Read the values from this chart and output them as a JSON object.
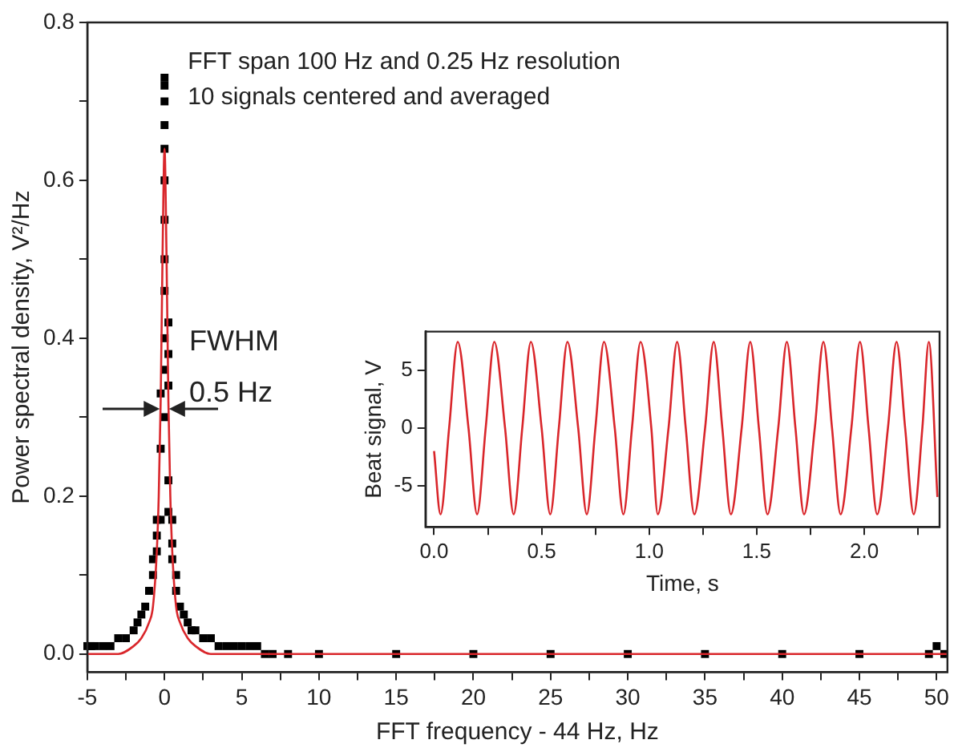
{
  "chart_data": [
    {
      "type": "scatter",
      "xlabel": "FFT frequency - 44 Hz, Hz",
      "ylabel": "Power spectral density, V²/Hz",
      "annotations": [
        "FFT span 100 Hz and 0.25 Hz resolution",
        "10 signals centered and averaged",
        "FWHM",
        "0.5 Hz"
      ],
      "xlim": [
        -5,
        50.7
      ],
      "ylim": [
        -0.023,
        0.8
      ],
      "xticks": [
        -5,
        {
          "value": -2.5,
          "label": null
        },
        0,
        {
          "value": 2.5,
          "label": null
        },
        5,
        {
          "value": 7.5,
          "label": null
        },
        10,
        {
          "value": 12.5,
          "label": null
        },
        15,
        {
          "value": 17.5,
          "label": null
        },
        20,
        {
          "value": 22.5,
          "label": null
        },
        25,
        {
          "value": 27.5,
          "label": null
        },
        30,
        {
          "value": 32.5,
          "label": null
        },
        35,
        {
          "value": 37.5,
          "label": null
        },
        40,
        {
          "value": 42.5,
          "label": null
        },
        45,
        {
          "value": 47.5,
          "label": null
        },
        50
      ],
      "yticks": [
        {
          "value": 0,
          "label": "0.0"
        },
        {
          "value": 0.1,
          "label": null
        },
        0.2,
        {
          "value": 0.3,
          "label": null
        },
        0.4,
        {
          "value": 0.5,
          "label": null
        },
        0.6,
        {
          "value": 0.7,
          "label": null
        },
        0.8
      ],
      "grid": false,
      "series": [
        {
          "type": "scatter",
          "color": "#000000",
          "marker": "square",
          "x": [
            -5,
            -4.75,
            -4.5,
            -4,
            -3.5,
            -3,
            -2.5,
            -2,
            -1.75,
            -1.5,
            -1.25,
            -1,
            -0.75,
            -0.75,
            -0.5,
            -0.5,
            -0.5,
            -0.25,
            -0.25,
            -0.25,
            0,
            0,
            0,
            0,
            0,
            0,
            0,
            0,
            0,
            0,
            0,
            0,
            0.25,
            0.25,
            0.25,
            0.25,
            0.25,
            0.5,
            0.5,
            0.5,
            0.75,
            0.75,
            1,
            1.25,
            1.5,
            1.75,
            2,
            2.5,
            3,
            3.5,
            4,
            4.5,
            5,
            5.5,
            6,
            6.5,
            7,
            8,
            10,
            15,
            20,
            25,
            30,
            35,
            40,
            45,
            49.5,
            50,
            50.5
          ],
          "values": [
            0.01,
            0.01,
            0.01,
            0.01,
            0.01,
            0.02,
            0.02,
            0.03,
            0.04,
            0.05,
            0.06,
            0.08,
            0.1,
            0.12,
            0.13,
            0.15,
            0.17,
            0.17,
            0.26,
            0.33,
            0.73,
            0.72,
            0.7,
            0.67,
            0.64,
            0.6,
            0.55,
            0.5,
            0.46,
            0.4,
            0.36,
            0.3,
            0.42,
            0.38,
            0.34,
            0.22,
            0.18,
            0.17,
            0.14,
            0.12,
            0.1,
            0.08,
            0.06,
            0.05,
            0.04,
            0.03,
            0.03,
            0.02,
            0.02,
            0.01,
            0.01,
            0.01,
            0.01,
            0.01,
            0.01,
            0,
            0,
            0,
            0,
            0,
            0,
            0,
            0,
            0,
            0,
            0,
            0,
            0.01,
            0
          ]
        },
        {
          "type": "line",
          "color": "#d9262b",
          "marker": "none",
          "x": [
            -5,
            -4,
            -3,
            -2,
            -1.5,
            -1,
            -0.75,
            -0.5,
            -0.375,
            -0.25,
            -0.125,
            0,
            0.125,
            0.25,
            0.375,
            0.5,
            0.75,
            1,
            1.5,
            2,
            3,
            4,
            5,
            10,
            20,
            30,
            40,
            50.7
          ],
          "values": [
            0,
            0,
            0,
            0.01,
            0.02,
            0.04,
            0.06,
            0.13,
            0.2,
            0.32,
            0.51,
            0.64,
            0.51,
            0.32,
            0.2,
            0.13,
            0.06,
            0.04,
            0.02,
            0.01,
            0,
            0,
            0,
            0,
            0,
            0,
            0,
            0
          ]
        }
      ]
    },
    {
      "type": "line",
      "xlabel": "Time, s",
      "ylabel": "Beat signal, V",
      "xlim": [
        -0.04,
        2.35
      ],
      "ylim": [
        -8.6,
        8.4
      ],
      "xticks": [
        {
          "value": 0,
          "label": "0.0"
        },
        {
          "value": 0.25,
          "label": null
        },
        0.5,
        {
          "value": 0.75,
          "label": null
        },
        {
          "value": 1,
          "label": "1.0"
        },
        {
          "value": 1.25,
          "label": null
        },
        1.5,
        {
          "value": 1.75,
          "label": null
        },
        {
          "value": 2,
          "label": "2.0"
        },
        {
          "value": 2.25,
          "label": null
        }
      ],
      "yticks": [
        -5,
        0,
        5
      ],
      "grid": false,
      "series": [
        {
          "color": "#d9262b",
          "marker": "none",
          "x": [
            0,
            0.03,
            0.07,
            0.11,
            0.16,
            0.2,
            0.24,
            0.28,
            0.33,
            0.37,
            0.41,
            0.45,
            0.5,
            0.54,
            0.58,
            0.62,
            0.67,
            0.71,
            0.75,
            0.79,
            0.84,
            0.88,
            0.92,
            0.96,
            1.01,
            1.04,
            1.09,
            1.13,
            1.17,
            1.21,
            1.26,
            1.3,
            1.34,
            1.38,
            1.43,
            1.47,
            1.51,
            1.55,
            1.6,
            1.64,
            1.68,
            1.72,
            1.77,
            1.81,
            1.85,
            1.89,
            1.94,
            1.98,
            2.02,
            2.06,
            2.11,
            2.15,
            2.19,
            2.23,
            2.27,
            2.3,
            2.34
          ],
          "values": [
            -2,
            -7.5,
            0,
            7.5,
            0,
            -7.5,
            0,
            7.5,
            0,
            -7.5,
            0,
            7.5,
            0,
            -7.5,
            0,
            7.5,
            0,
            -7.5,
            0,
            7.5,
            0,
            -7.5,
            0,
            7.5,
            0,
            -7.5,
            0,
            7.5,
            0,
            -7.5,
            0,
            7.5,
            0,
            -7.5,
            0,
            7.5,
            0,
            -7.5,
            0,
            7.5,
            0,
            -7.5,
            0,
            7.5,
            0,
            -7.5,
            0,
            7.5,
            0,
            -7.5,
            0,
            7.5,
            0,
            -7.5,
            0,
            7.5,
            -6
          ]
        }
      ]
    }
  ]
}
